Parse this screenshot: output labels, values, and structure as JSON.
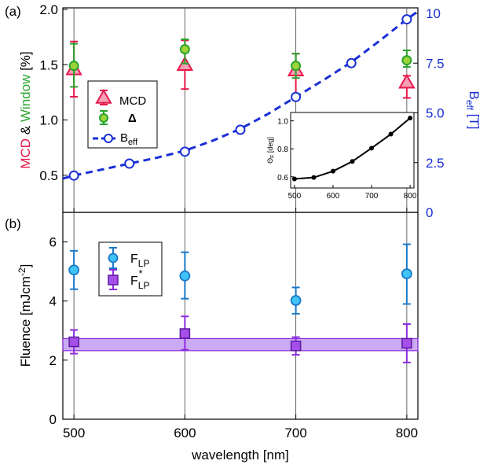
{
  "colors": {
    "mcd": "#e8174a",
    "mcd_fill": "#f6a0b4",
    "window": "#29a32b",
    "window_fill": "#9dd33a",
    "beff": "#1a2fd6",
    "fluence": "#1aa6e8",
    "fluence_fill": "#3fc3f6",
    "fstar": "#8b2be0",
    "fstar_fill": "#a64fe9",
    "band_fill": "#b98df0"
  },
  "chart_data": [
    {
      "panel_label": "(a)",
      "type": "scatter",
      "x_ticks": [
        500,
        600,
        700,
        800
      ],
      "x_tick_labels": [
        "",
        "",
        "",
        ""
      ],
      "xlim": [
        490,
        810
      ],
      "left_axis": {
        "label_parts": [
          {
            "text": "MCD",
            "color": "#e8174a"
          },
          {
            "text": " & ",
            "color": "#000000"
          },
          {
            "text": "Window",
            "color": "#29a32b"
          },
          {
            "text": " [%]",
            "color": "#000000"
          }
        ],
        "ylim": [
          0.2,
          2.0
        ],
        "ticks": [
          0.5,
          1.0,
          1.5,
          2.0
        ],
        "tick_labels": [
          "0.5",
          "1.0",
          "1.5",
          "2.0"
        ]
      },
      "right_axis": {
        "label_main": "B",
        "label_sub": "eff",
        "label_tail": " [T]",
        "ylim": [
          0,
          10
        ],
        "ticks": [
          0,
          2.5,
          5.0,
          7.5,
          10
        ],
        "tick_labels": [
          "0",
          "2.5",
          "5.0",
          "7.5",
          "10"
        ]
      },
      "series": [
        {
          "name": "MCD",
          "marker": "triangle",
          "axis": "left",
          "x": [
            500,
            600,
            700,
            800
          ],
          "y": [
            1.46,
            1.5,
            1.45,
            1.34
          ],
          "err_low": [
            1.21,
            1.28,
            1.22,
            1.2
          ],
          "err_high": [
            1.71,
            1.72,
            1.6,
            1.4
          ]
        },
        {
          "name": "Δ",
          "marker": "circle",
          "axis": "left",
          "x": [
            500,
            600,
            700,
            800
          ],
          "y": [
            1.49,
            1.64,
            1.49,
            1.54
          ],
          "err_low": [
            1.3,
            1.51,
            1.38,
            1.48
          ],
          "err_high": [
            1.69,
            1.73,
            1.6,
            1.63
          ]
        },
        {
          "name": "B",
          "name_sub": "eff",
          "marker": "open-circle",
          "axis": "right",
          "x": [
            500,
            550,
            600,
            650,
            700,
            750,
            800
          ],
          "y": [
            1.85,
            2.45,
            3.05,
            4.15,
            5.8,
            7.5,
            9.7
          ],
          "fit_x": [
            490,
            500,
            525,
            550,
            575,
            600,
            625,
            650,
            675,
            700,
            725,
            750,
            775,
            800,
            810
          ],
          "fit_y": [
            1.7,
            1.85,
            2.15,
            2.45,
            2.75,
            3.1,
            3.6,
            4.2,
            4.95,
            5.8,
            6.65,
            7.55,
            8.6,
            9.7,
            10.1
          ]
        }
      ],
      "legend": {
        "placement": "center-left"
      },
      "inset": {
        "type": "line",
        "ylabel_main": "Θ",
        "ylabel_sub": "F",
        "ylabel_tail": " [deg]",
        "x": [
          500,
          550,
          600,
          650,
          700,
          750,
          800
        ],
        "y": [
          0.585,
          0.595,
          0.64,
          0.71,
          0.805,
          0.905,
          1.02
        ],
        "xlim": [
          490,
          810
        ],
        "ylim": [
          0.52,
          1.06
        ],
        "x_ticks": [
          500,
          600,
          700,
          800
        ],
        "x_tick_labels": [
          "500",
          "600",
          "700",
          "800"
        ],
        "y_ticks": [
          0.6,
          0.8,
          1.0
        ],
        "y_tick_labels": [
          "0.6",
          "0.8",
          "1.0"
        ]
      }
    },
    {
      "panel_label": "(b)",
      "type": "scatter",
      "xlabel": "wavelength [nm]",
      "xlim": [
        490,
        810
      ],
      "x_ticks": [
        500,
        600,
        700,
        800
      ],
      "x_tick_labels": [
        "500",
        "600",
        "700",
        "800"
      ],
      "ylabel_main": "Fluence  [mJcm",
      "ylabel_sup": "-2",
      "ylabel_tail": "]",
      "ylim": [
        0,
        7
      ],
      "y_ticks": [
        0,
        2,
        4,
        6
      ],
      "y_tick_labels": [
        "0",
        "2",
        "4",
        "6"
      ],
      "series": [
        {
          "name": "F",
          "name_sub": "LP",
          "name_sup": "",
          "marker": "circle",
          "x": [
            500,
            600,
            700,
            800
          ],
          "y": [
            5.05,
            4.85,
            4.02,
            4.92
          ],
          "err_low": [
            4.4,
            4.08,
            3.57,
            3.9
          ],
          "err_high": [
            5.7,
            5.65,
            4.46,
            5.92
          ]
        },
        {
          "name": "F",
          "name_sub": "LP",
          "name_sup": "*",
          "marker": "square",
          "x": [
            500,
            600,
            700,
            800
          ],
          "y": [
            2.62,
            2.9,
            2.48,
            2.57
          ],
          "err_low": [
            2.22,
            2.35,
            2.18,
            1.92
          ],
          "err_high": [
            3.02,
            3.48,
            2.78,
            3.22
          ]
        }
      ],
      "band": {
        "y_low": 2.32,
        "y_high": 2.73
      },
      "legend": {
        "placement": "upper-left"
      }
    }
  ]
}
